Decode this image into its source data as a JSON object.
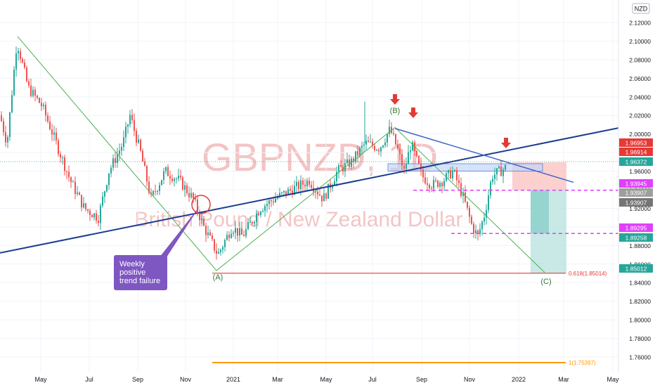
{
  "chart_data": {
    "type": "candlestick",
    "symbol": "GBPNZD",
    "timeframe": "1D",
    "watermark_symbol": "GBPNZD, 1D",
    "watermark_name": "British Pound / New Zealand Dollar",
    "currency_label": "NZD",
    "y_ticks": [
      "2.12000",
      "2.10000",
      "2.08000",
      "2.06000",
      "2.04000",
      "2.02000",
      "2.00000",
      "1.98000",
      "1.96000",
      "1.94000",
      "1.92000",
      "1.90000",
      "1.88000",
      "1.86000",
      "1.84000",
      "1.82000",
      "1.80000",
      "1.78000",
      "1.76000"
    ],
    "y_tick_values": [
      2.12,
      2.1,
      2.08,
      2.06,
      2.04,
      2.02,
      2.0,
      1.98,
      1.96,
      1.94,
      1.92,
      1.9,
      1.88,
      1.86,
      1.84,
      1.82,
      1.8,
      1.78,
      1.76
    ],
    "x_ticks": [
      "May",
      "Jul",
      "Sep",
      "Nov",
      "2021",
      "Mar",
      "May",
      "Jul",
      "Sep",
      "Nov",
      "2022",
      "Mar",
      "May"
    ],
    "ylim": [
      1.745,
      2.145
    ],
    "price_tags": [
      {
        "label": "1.96953",
        "value": 1.96953,
        "color": "#e53935"
      },
      {
        "label": "1.96914",
        "value": 1.96914,
        "color": "#e53935"
      },
      {
        "label": "1.96372",
        "value": 1.96372,
        "color": "#26a69a"
      },
      {
        "label": "1.93945",
        "value": 1.93945,
        "color": "#e040fb"
      },
      {
        "label": "1.93907",
        "value": 1.93907,
        "color": "#9e9e9e"
      },
      {
        "label": "1.93907",
        "value": 1.93907,
        "color": "#757575"
      },
      {
        "label": "1.89295",
        "value": 1.89295,
        "color": "#e040fb"
      },
      {
        "label": "1.89258",
        "value": 1.89258,
        "color": "#26a69a"
      },
      {
        "label": "1.85012",
        "value": 1.85012,
        "color": "#26a69a"
      }
    ],
    "fib_levels": [
      {
        "label": "0.618(1.85014)",
        "value": 1.85014,
        "color": "#e53935"
      },
      {
        "label": "1(1.75397)",
        "value": 1.75397,
        "color": "#ff9800"
      }
    ],
    "wave_labels": [
      "(A)",
      "(B)",
      "(C)"
    ],
    "annotation": [
      "Weekly",
      "positive",
      "trend failure"
    ],
    "colors": {
      "up": "#26a69a",
      "down": "#ef5350",
      "trend": "#1a3d8f",
      "zigzag": "#4caf50",
      "fib_red": "#e53935",
      "fib_orange": "#ff9800",
      "magenta": "#e040fb",
      "box_purple": "#7e57c2"
    }
  }
}
